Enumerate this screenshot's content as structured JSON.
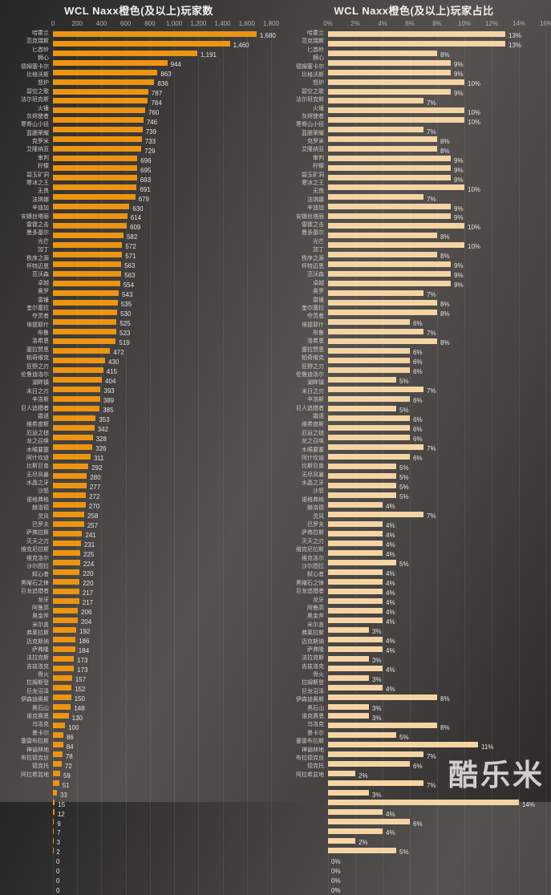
{
  "watermark": "酷乐米",
  "chart_data": [
    {
      "type": "bar",
      "orientation": "horizontal",
      "title": "WCL Naxx橙色(及以上)玩家数",
      "xlabel": "",
      "ylabel": "",
      "xlim": [
        0,
        1800
      ],
      "tick_labels": [
        "0",
        "200",
        "400",
        "600",
        "800",
        "1,000",
        "1,200",
        "1,400",
        "1,600",
        "1,800"
      ],
      "max": 1800,
      "grid": true,
      "bar_color": "#ED9410",
      "value_format": "number",
      "categories": [
        "哈霍兰",
        "范克瑞斯",
        "匕首岭",
        "狮心",
        "德姆塞卡尔",
        "比格沃斯",
        "怒炉",
        "碧空之歌",
        "法尔班克斯",
        "火锤",
        "灰烬使者",
        "寒脊山小径",
        "蓝腮荣耀",
        "克罗米",
        "艾隆纳亚",
        "审判",
        "柠檬",
        "碧玉矿洞",
        "寒冰之王",
        "无畏",
        "法琪娜",
        "辛迪加",
        "安娜丝塔丽",
        "雷霆之击",
        "曼多基尔",
        "光芒",
        "加丁",
        "秩序之源",
        "怀特迈恩",
        "范沃森",
        "卓越",
        "奥罗",
        "雷锤",
        "奎尔塞拉",
        "夺灵者",
        "埃提耶什",
        "布鲁",
        "洛希恩",
        "塞拉赞恩",
        "帕奇维克",
        "狂野之刃",
        "伦鲁迪洛尔",
        "湖畔镇",
        "末日之刃",
        "辛洛斯",
        "巨人追猎者",
        "霜语",
        "维希度斯",
        "厄运之槌",
        "龙之召唤",
        "木喉要塞",
        "阿什坎迪",
        "比斯巨兽",
        "无尽风暴",
        "水晶之牙",
        "沙怒",
        "诺格弗格",
        "赫洛德",
        "灵风",
        "巴罗夫",
        "萨弗拉斯",
        "灭天之刃",
        "维克尼拉斯",
        "维克洛尔",
        "沙尔图拉",
        "弑心者",
        "黑曜石之锋",
        "巨龙追猎者",
        "龙牙",
        "阿鲁高",
        "奥金斧",
        "米尔盖",
        "弗莱拉斯",
        "迈克斯纳",
        "萨弗隆",
        "法拉克斯",
        "吉兹洛克",
        "骨火",
        "拉姆斯登",
        "巨龙沼泽",
        "伊森迪奥斯",
        "黑石山",
        "诺克赛恩",
        "乌洛克",
        "墨卡尔",
        "塞雷布拉斯",
        "神谕林地",
        "布拉德克丝",
        "德克托",
        "阿拉希盆地"
      ],
      "values": [
        1680,
        1460,
        1191,
        944,
        863,
        836,
        787,
        784,
        760,
        746,
        739,
        733,
        729,
        696,
        695,
        693,
        691,
        679,
        630,
        614,
        609,
        582,
        572,
        571,
        563,
        563,
        554,
        543,
        535,
        530,
        525,
        523,
        519,
        472,
        430,
        415,
        404,
        393,
        389,
        385,
        353,
        342,
        328,
        326,
        311,
        292,
        280,
        277,
        272,
        270,
        258,
        257,
        241,
        231,
        225,
        224,
        220,
        220,
        217,
        217,
        206,
        204,
        192,
        186,
        184,
        173,
        173,
        157,
        152,
        150,
        148,
        130,
        100,
        86,
        84,
        78,
        72,
        59,
        51,
        33,
        15,
        12,
        9,
        7,
        3,
        2,
        0,
        0,
        0,
        0
      ]
    },
    {
      "type": "bar",
      "orientation": "horizontal",
      "title": "WCL Naxx橙色(及以上)玩家占比",
      "xlabel": "",
      "ylabel": "",
      "xlim": [
        0,
        16
      ],
      "tick_labels": [
        "0%",
        "2%",
        "4%",
        "6%",
        "8%",
        "10%",
        "12%",
        "14%",
        "16%"
      ],
      "max": 16,
      "grid": true,
      "bar_color": "#F5D4A3",
      "value_format": "percent",
      "categories": [
        "哈霍兰",
        "范克瑞斯",
        "匕首岭",
        "狮心",
        "德姆塞卡尔",
        "比格沃斯",
        "怒炉",
        "碧空之歌",
        "法尔班克斯",
        "火锤",
        "灰烬使者",
        "寒脊山小径",
        "蓝腮荣耀",
        "克罗米",
        "艾隆纳亚",
        "审判",
        "柠檬",
        "碧玉矿洞",
        "寒冰之王",
        "无畏",
        "法琪娜",
        "辛迪加",
        "安娜丝塔丽",
        "雷霆之击",
        "曼多基尔",
        "光芒",
        "加丁",
        "秩序之源",
        "怀特迈恩",
        "范沃森",
        "卓越",
        "奥罗",
        "雷锤",
        "奎尔塞拉",
        "夺灵者",
        "埃提耶什",
        "布鲁",
        "洛希恩",
        "塞拉赞恩",
        "帕奇维克",
        "狂野之刃",
        "伦鲁迪洛尔",
        "湖畔镇",
        "末日之刃",
        "辛洛斯",
        "巨人追猎者",
        "霜语",
        "维希度斯",
        "厄运之槌",
        "龙之召唤",
        "木喉要塞",
        "阿什坎迪",
        "比斯巨兽",
        "无尽风暴",
        "水晶之牙",
        "沙怒",
        "诺格弗格",
        "赫洛德",
        "灵风",
        "巴罗夫",
        "萨弗拉斯",
        "灭天之刃",
        "维克尼拉斯",
        "维克洛尔",
        "沙尔图拉",
        "弑心者",
        "黑曜石之锋",
        "巨龙追猎者",
        "龙牙",
        "阿鲁高",
        "奥金斧",
        "米尔盖",
        "弗莱拉斯",
        "迈克斯纳",
        "萨弗隆",
        "法拉克斯",
        "吉兹洛克",
        "骨火",
        "拉姆斯登",
        "巨龙沼泽",
        "伊森迪奥斯",
        "黑石山",
        "诺克赛恩",
        "乌洛克",
        "墨卡尔",
        "塞雷布拉斯",
        "神谕林地",
        "布拉德克丝",
        "德克托",
        "阿拉希盆地"
      ],
      "values": [
        13,
        13,
        8,
        9,
        9,
        10,
        9,
        7,
        10,
        10,
        7,
        8,
        8,
        9,
        9,
        9,
        10,
        7,
        9,
        9,
        10,
        8,
        10,
        8,
        9,
        9,
        9,
        7,
        8,
        8,
        6,
        7,
        8,
        6,
        6,
        6,
        5,
        7,
        6,
        5,
        6,
        6,
        6,
        7,
        6,
        5,
        5,
        5,
        5,
        4,
        7,
        4,
        4,
        4,
        4,
        5,
        4,
        4,
        4,
        4,
        4,
        4,
        3,
        4,
        4,
        3,
        4,
        3,
        4,
        8,
        3,
        3,
        8,
        5,
        11,
        7,
        6,
        2,
        7,
        3,
        14,
        4,
        6,
        4,
        2,
        5,
        0,
        0,
        0,
        0
      ]
    }
  ]
}
